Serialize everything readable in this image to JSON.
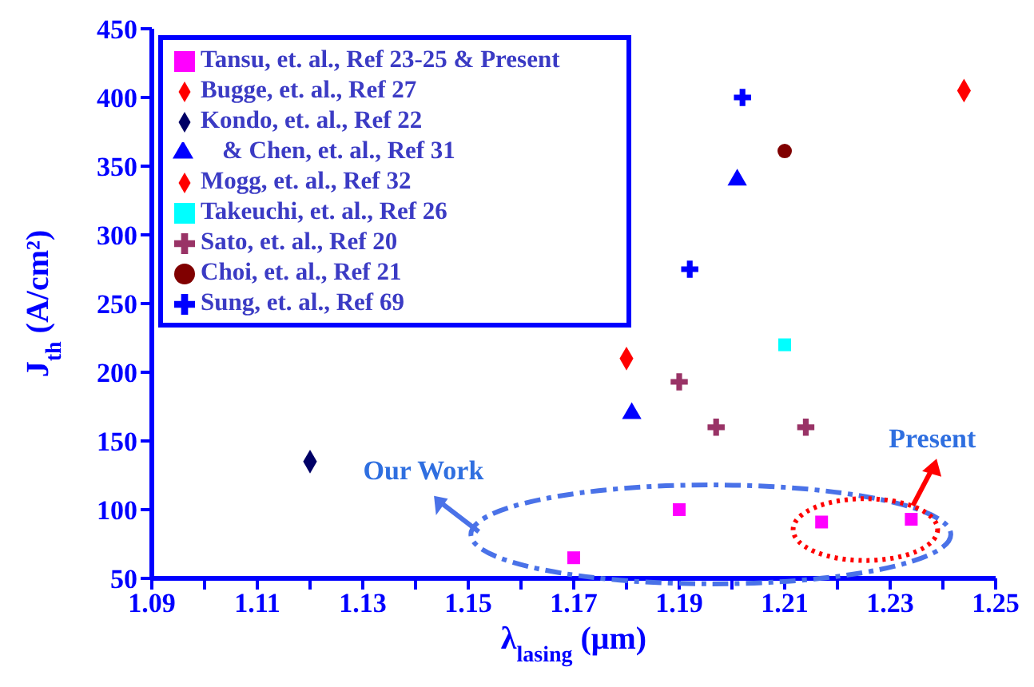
{
  "chart_data": {
    "type": "scatter",
    "xlabel": "λ$_{lasing}$ (μm)",
    "ylabel": "J$_{th}$ (A/cm²)",
    "xlim": [
      1.09,
      1.25
    ],
    "xticks": [
      1.09,
      {
        "value": 1.1,
        "label": null
      },
      1.11,
      {
        "value": 1.12,
        "label": null
      },
      1.13,
      {
        "value": 1.14,
        "label": null
      },
      1.15,
      {
        "value": 1.16,
        "label": null
      },
      1.17,
      {
        "value": 1.18,
        "label": null
      },
      1.19,
      {
        "value": 1.2,
        "label": null
      },
      1.21,
      {
        "value": 1.22,
        "label": null
      },
      1.23,
      {
        "value": 1.24,
        "label": null
      },
      1.25
    ],
    "ylim": [
      50,
      450
    ],
    "yticks": [
      50,
      100,
      150,
      200,
      250,
      300,
      350,
      400,
      450
    ],
    "grid": false,
    "legend": "top left",
    "series": [
      {
        "name": "Tansu, et. al., Ref 23-25 & Present",
        "color": "#ff00ff",
        "marker": "square",
        "x": [
          1.17,
          1.19,
          1.217,
          1.234
        ],
        "values": [
          65,
          100,
          91,
          93
        ]
      },
      {
        "name": "Bugge, et. al., Ref 27",
        "color": "#ff0000",
        "marker": "diamond",
        "x": [
          1.244
        ],
        "values": [
          405
        ]
      },
      {
        "name": "Kondo, et. al., Ref 22",
        "color": "#000066",
        "marker": "diamond",
        "x": [
          1.12
        ],
        "values": [
          135
        ]
      },
      {
        "name": "& Chen, et. al., Ref 31",
        "color": "#0000ff",
        "marker": "triangle",
        "x": [
          1.181,
          1.201
        ],
        "values": [
          170,
          340
        ]
      },
      {
        "name": "Mogg, et. al., Ref 32",
        "color": "#ff0000",
        "marker": "diamond",
        "x": [
          1.18
        ],
        "values": [
          210
        ]
      },
      {
        "name": "Takeuchi, et. al., Ref 26",
        "color": "#00ffff",
        "marker": "square",
        "x": [
          1.21
        ],
        "values": [
          220
        ]
      },
      {
        "name": "Sato, et. al., Ref 20",
        "color": "#993366",
        "marker": "cross",
        "x": [
          1.19,
          1.197,
          1.214
        ],
        "values": [
          193,
          160,
          160
        ]
      },
      {
        "name": "Choi, et. al., Ref 21",
        "color": "#800000",
        "marker": "circle",
        "x": [
          1.21
        ],
        "values": [
          361
        ]
      },
      {
        "name": "Sung, et. al., Ref 69",
        "color": "#0000ff",
        "marker": "cross",
        "x": [
          1.192,
          1.202
        ],
        "values": [
          275,
          400
        ]
      }
    ],
    "annotations": [
      "Our Work",
      "Present"
    ]
  }
}
